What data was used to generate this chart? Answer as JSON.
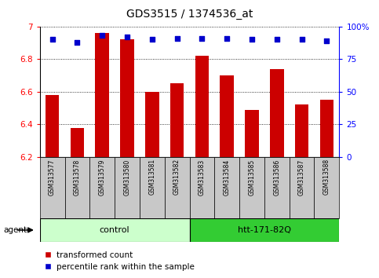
{
  "title": "GDS3515 / 1374536_at",
  "samples": [
    "GSM313577",
    "GSM313578",
    "GSM313579",
    "GSM313580",
    "GSM313581",
    "GSM313582",
    "GSM313583",
    "GSM313584",
    "GSM313585",
    "GSM313586",
    "GSM313587",
    "GSM313588"
  ],
  "bar_values": [
    6.58,
    6.38,
    6.96,
    6.92,
    6.6,
    6.65,
    6.82,
    6.7,
    6.49,
    6.74,
    6.52,
    6.55
  ],
  "percentile_values": [
    90,
    88,
    93,
    92,
    90,
    91,
    91,
    91,
    90,
    90,
    90,
    89
  ],
  "bar_color": "#cc0000",
  "dot_color": "#0000cc",
  "ylim_left": [
    6.2,
    7.0
  ],
  "ylim_right": [
    0,
    100
  ],
  "yticks_left": [
    6.2,
    6.4,
    6.6,
    6.8,
    7.0
  ],
  "ytick_labels_left": [
    "6.2",
    "6.4",
    "6.6",
    "6.8",
    "7"
  ],
  "yticks_right": [
    0,
    25,
    50,
    75,
    100
  ],
  "ytick_labels_right": [
    "0",
    "25",
    "50",
    "75",
    "100%"
  ],
  "control_label": "control",
  "treatment_label": "htt-171-82Q",
  "agent_label": "agent",
  "legend_red": "transformed count",
  "legend_blue": "percentile rank within the sample",
  "control_bg": "#ccffcc",
  "treatment_bg": "#33cc33",
  "xlabel_bg": "#c8c8c8",
  "bar_bottom": 6.2,
  "bar_width": 0.55,
  "n_control": 6,
  "n_treatment": 6
}
